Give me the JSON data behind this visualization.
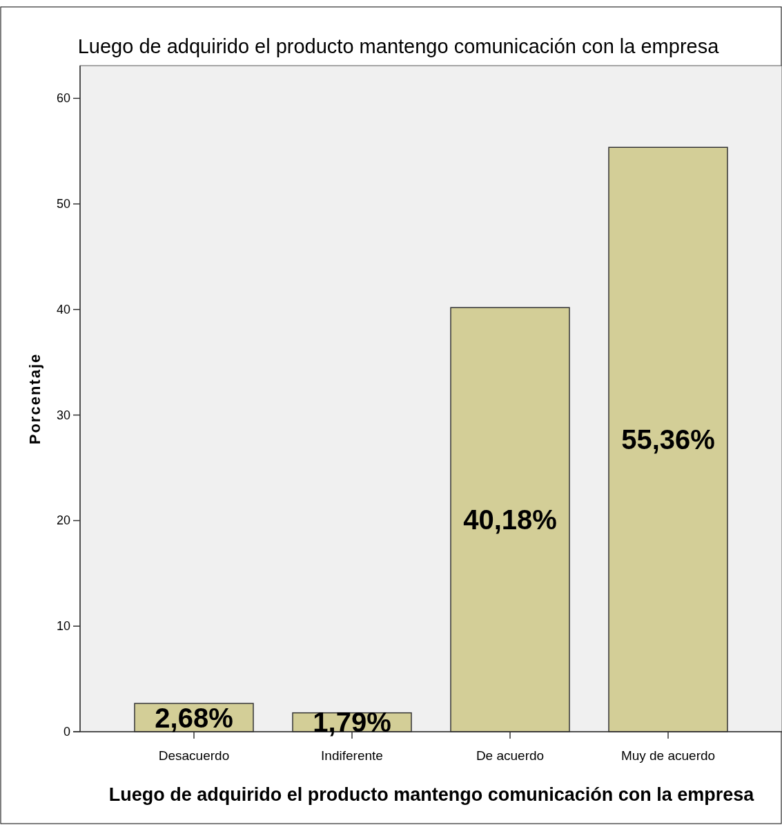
{
  "chart_data": {
    "type": "bar",
    "title": "Luego de adquirido el producto mantengo comunicación con la empresa",
    "xlabel": "Luego de adquirido el producto mantengo comunicación con la empresa",
    "ylabel": "Porcentaje",
    "categories": [
      "Desacuerdo",
      "Indiferente",
      "De acuerdo",
      "Muy de acuerdo"
    ],
    "values": [
      2.68,
      1.79,
      40.18,
      55.36
    ],
    "value_labels": [
      "2,68%",
      "1,79%",
      "40,18%",
      "55,36%"
    ],
    "color": "#d3ce97",
    "ylim": [
      0,
      63.1
    ],
    "yticks": [
      0,
      10,
      20,
      30,
      40,
      50,
      60
    ]
  }
}
